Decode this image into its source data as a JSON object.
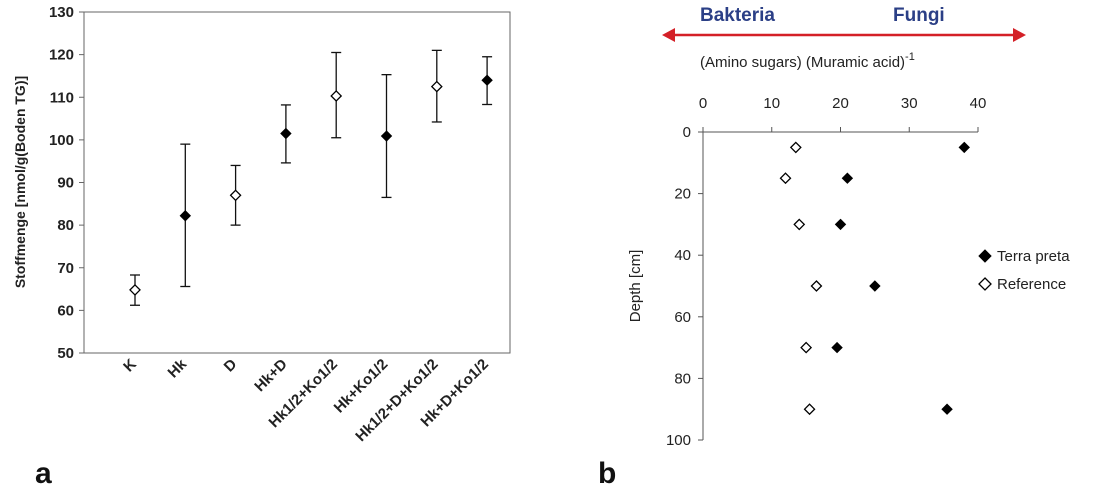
{
  "panel_a_label": "a",
  "panel_b_label": "b",
  "chart_data": [
    {
      "type": "scatter",
      "title": "",
      "xlabel": "",
      "ylabel": "Stoffmenge [nmol/g(Boden TG)]",
      "ylim": [
        50,
        130
      ],
      "yticks": [
        50,
        60,
        70,
        80,
        90,
        100,
        110,
        120,
        130
      ],
      "grid": false,
      "categories": [
        "K",
        "Hk",
        "D",
        "Hk+D",
        "Hk1/2+Ko1/2",
        "Hk+Ko1/2",
        "Hk1/2+D+Ko1/2",
        "Hk+D+Ko1/2"
      ],
      "points": [
        {
          "category": "K",
          "value": 64.8,
          "err_low": 61.2,
          "err_high": 68.3,
          "marker": "open"
        },
        {
          "category": "Hk",
          "value": 82.2,
          "err_low": 65.6,
          "err_high": 99.0,
          "marker": "filled"
        },
        {
          "category": "D",
          "value": 87.0,
          "err_low": 80.0,
          "err_high": 94.0,
          "marker": "open"
        },
        {
          "category": "Hk+D",
          "value": 101.5,
          "err_low": 94.6,
          "err_high": 108.2,
          "marker": "filled"
        },
        {
          "category": "Hk1/2+Ko1/2",
          "value": 110.3,
          "err_low": 100.5,
          "err_high": 120.5,
          "marker": "open"
        },
        {
          "category": "Hk+Ko1/2",
          "value": 100.9,
          "err_low": 86.5,
          "err_high": 115.3,
          "marker": "filled"
        },
        {
          "category": "Hk1/2+D+Ko1/2",
          "value": 112.5,
          "err_low": 104.2,
          "err_high": 121.0,
          "marker": "open"
        },
        {
          "category": "Hk+D+Ko1/2",
          "value": 114.0,
          "err_low": 108.3,
          "err_high": 119.5,
          "marker": "filled"
        }
      ]
    },
    {
      "type": "scatter",
      "title": "",
      "xlabel": "(Amino sugars) (Muramic acid)",
      "xlabel_superscript": "-1",
      "ylabel": "Depth [cm]",
      "xlim": [
        0,
        40
      ],
      "ylim": [
        0,
        100
      ],
      "y_inverted": true,
      "x_axis_position": "top",
      "xticks": [
        0,
        10,
        20,
        30,
        40
      ],
      "yticks": [
        0,
        20,
        40,
        60,
        80,
        100
      ],
      "arrow_left_label": "Bakteria",
      "arrow_right_label": "Fungi",
      "arrow_color": "#d42027",
      "legend_position": "right",
      "grid": false,
      "series": [
        {
          "name": "Terra preta",
          "marker": "filled",
          "points": [
            [
              38,
              5
            ],
            [
              21,
              15
            ],
            [
              20,
              30
            ],
            [
              25,
              50
            ],
            [
              19.5,
              70
            ],
            [
              35.5,
              90
            ]
          ]
        },
        {
          "name": "Reference",
          "marker": "open",
          "points": [
            [
              13.5,
              5
            ],
            [
              12,
              15
            ],
            [
              14,
              30
            ],
            [
              16.5,
              50
            ],
            [
              15,
              70
            ],
            [
              15.5,
              90
            ]
          ]
        }
      ]
    }
  ]
}
